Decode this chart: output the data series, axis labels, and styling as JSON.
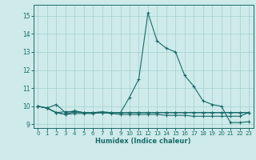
{
  "xlabel": "Humidex (Indice chaleur)",
  "xlim": [
    -0.5,
    23.5
  ],
  "ylim": [
    8.8,
    15.6
  ],
  "yticks": [
    9,
    10,
    11,
    12,
    13,
    14,
    15
  ],
  "xticks": [
    0,
    1,
    2,
    3,
    4,
    5,
    6,
    7,
    8,
    9,
    10,
    11,
    12,
    13,
    14,
    15,
    16,
    17,
    18,
    19,
    20,
    21,
    22,
    23
  ],
  "bg_color": "#ceeaea",
  "grid_color": "#aad4d4",
  "line_color": "#1a6b6b",
  "series": [
    [
      10.0,
      9.9,
      10.1,
      9.65,
      9.75,
      9.65,
      9.65,
      9.7,
      9.65,
      9.65,
      10.5,
      11.5,
      15.15,
      13.6,
      13.2,
      13.0,
      11.7,
      11.1,
      10.3,
      10.1,
      10.0,
      9.1,
      9.1,
      9.15
    ],
    [
      10.0,
      9.9,
      9.65,
      9.55,
      9.6,
      9.6,
      9.6,
      9.65,
      9.6,
      9.55,
      9.55,
      9.55,
      9.55,
      9.55,
      9.5,
      9.5,
      9.5,
      9.45,
      9.45,
      9.45,
      9.45,
      9.45,
      9.45,
      9.65
    ],
    [
      10.0,
      9.9,
      9.65,
      9.7,
      9.7,
      9.65,
      9.65,
      9.65,
      9.65,
      9.65,
      9.65,
      9.65,
      9.65,
      9.65,
      9.65,
      9.65,
      9.65,
      9.65,
      9.65,
      9.65,
      9.65,
      9.65,
      9.65,
      9.65
    ],
    [
      10.0,
      9.9,
      9.65,
      9.55,
      9.7,
      9.65,
      9.65,
      9.65,
      9.65,
      9.65,
      9.65,
      9.65,
      9.65,
      9.65,
      9.65,
      9.65,
      9.65,
      9.65,
      9.65,
      9.65,
      9.65,
      9.65,
      9.65,
      9.65
    ]
  ]
}
